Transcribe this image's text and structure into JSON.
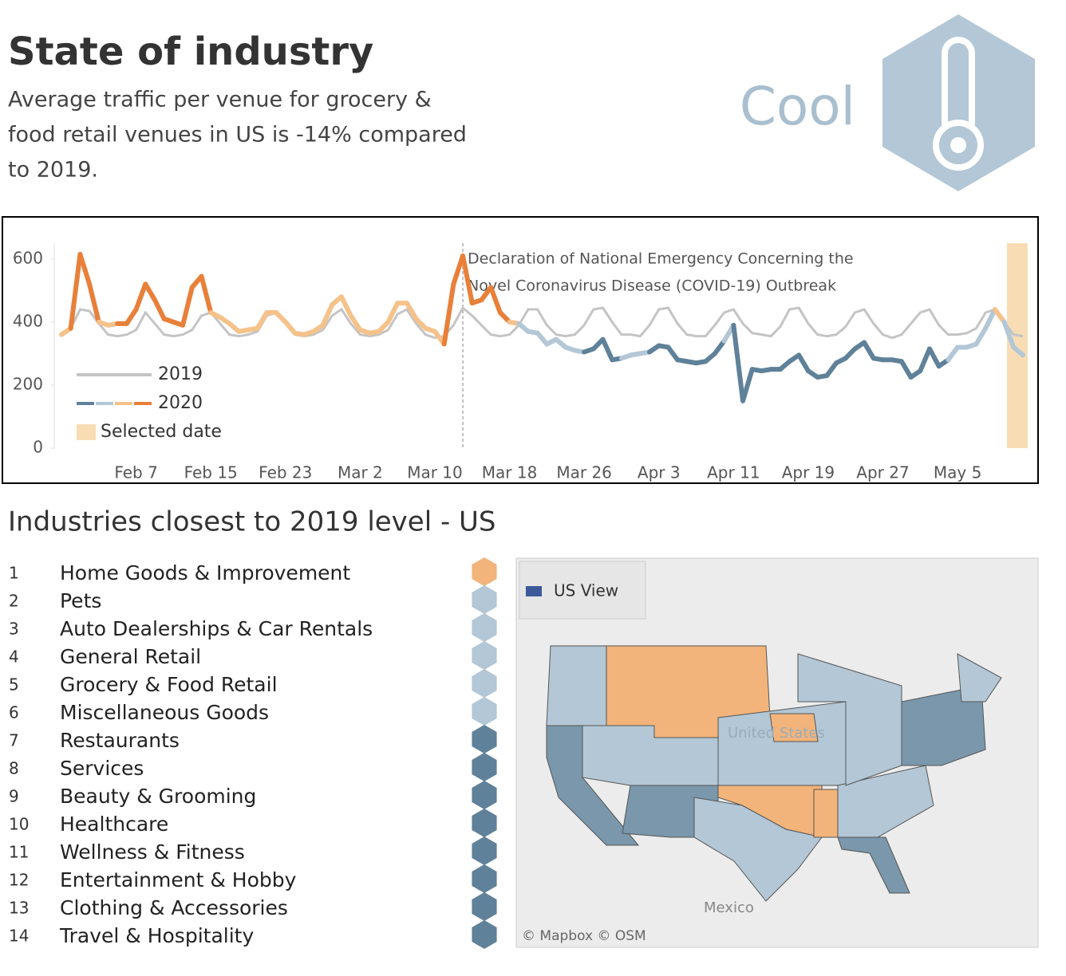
{
  "header": {
    "title": "State of industry",
    "subtitle_lines": [
      "Average traffic per venue for grocery &",
      "food retail venues in US is -14% compared",
      "to 2019."
    ],
    "status": "Cool"
  },
  "chart_data": {
    "type": "line",
    "categories": [
      null,
      null,
      null,
      null,
      null,
      null,
      null,
      null,
      "Feb 7",
      null,
      null,
      null,
      null,
      null,
      null,
      null,
      "Feb 15",
      null,
      null,
      null,
      null,
      null,
      null,
      null,
      "Feb 23",
      null,
      null,
      null,
      null,
      null,
      null,
      null,
      "Mar 2",
      null,
      null,
      null,
      null,
      null,
      null,
      null,
      "Mar 10",
      null,
      null,
      null,
      null,
      null,
      null,
      null,
      "Mar 18",
      null,
      null,
      null,
      null,
      null,
      null,
      null,
      "Mar 26",
      null,
      null,
      null,
      null,
      null,
      null,
      null,
      "Apr 3",
      null,
      null,
      null,
      null,
      null,
      null,
      null,
      "Apr 11",
      null,
      null,
      null,
      null,
      null,
      null,
      null,
      "Apr 19",
      null,
      null,
      null,
      null,
      null,
      null,
      null,
      "Apr 27",
      null,
      null,
      null,
      null,
      null,
      null,
      null,
      "May 5",
      null,
      null,
      null,
      null,
      null,
      null,
      null
    ],
    "series": [
      {
        "name": "2019",
        "color": "#c4c4c4",
        "values": [
          360,
          380,
          440,
          435,
          395,
          360,
          355,
          360,
          375,
          430,
          395,
          360,
          355,
          360,
          375,
          420,
          430,
          395,
          360,
          355,
          360,
          370,
          420,
          430,
          395,
          360,
          355,
          360,
          375,
          420,
          440,
          395,
          360,
          355,
          360,
          375,
          425,
          440,
          395,
          360,
          350,
          355,
          390,
          445,
          420,
          390,
          360,
          355,
          360,
          390,
          440,
          440,
          390,
          360,
          355,
          360,
          390,
          440,
          445,
          400,
          360,
          360,
          355,
          390,
          440,
          445,
          395,
          360,
          355,
          355,
          390,
          430,
          440,
          395,
          365,
          360,
          355,
          385,
          440,
          445,
          395,
          360,
          355,
          360,
          385,
          430,
          440,
          395,
          360,
          350,
          360,
          395,
          430,
          440,
          390,
          360,
          360,
          365,
          380,
          430,
          440,
          400,
          360,
          355
        ]
      },
      {
        "name": "2020",
        "color_scale": [
          "#5f8199",
          "#b3c7d6",
          "#f5c28a",
          "#e8803a"
        ],
        "values": [
          360,
          380,
          615,
          520,
          400,
          390,
          395,
          395,
          440,
          520,
          470,
          410,
          400,
          390,
          510,
          545,
          430,
          415,
          395,
          370,
          375,
          380,
          430,
          430,
          400,
          365,
          360,
          370,
          390,
          455,
          480,
          420,
          375,
          365,
          370,
          400,
          460,
          460,
          410,
          380,
          370,
          330,
          520,
          610,
          460,
          470,
          510,
          430,
          400,
          395,
          370,
          365,
          330,
          345,
          320,
          310,
          305,
          315,
          345,
          280,
          285,
          295,
          300,
          305,
          325,
          320,
          280,
          275,
          270,
          275,
          300,
          340,
          390,
          150,
          250,
          245,
          250,
          250,
          275,
          295,
          245,
          225,
          230,
          270,
          285,
          315,
          335,
          285,
          280,
          280,
          275,
          225,
          245,
          315,
          260,
          280,
          320,
          320,
          330,
          380,
          440,
          400,
          320,
          295
        ]
      }
    ],
    "highlight_label": "Selected date",
    "highlight_color": "#f8dcb4",
    "annotation": "Declaration of National Emergency Concerning the Novel Coronavirus Disease (COVID-19) Outbreak",
    "ylim": [
      0,
      650
    ],
    "yticks": [
      0,
      200,
      400,
      600
    ]
  },
  "ranking": {
    "title": "Industries closest to 2019 level - US",
    "items": [
      {
        "rank": 1,
        "name": "Home Goods & Improvement",
        "color": "#f2b47a"
      },
      {
        "rank": 2,
        "name": "Pets",
        "color": "#b3c7d6"
      },
      {
        "rank": 3,
        "name": "Auto Dealerships & Car Rentals",
        "color": "#b3c7d6"
      },
      {
        "rank": 4,
        "name": "General Retail",
        "color": "#b3c7d6"
      },
      {
        "rank": 5,
        "name": "Grocery & Food Retail",
        "color": "#b3c7d6"
      },
      {
        "rank": 6,
        "name": "Miscellaneous Goods",
        "color": "#b3c7d6"
      },
      {
        "rank": 7,
        "name": "Restaurants",
        "color": "#5f8199"
      },
      {
        "rank": 8,
        "name": "Services",
        "color": "#5f8199"
      },
      {
        "rank": 9,
        "name": "Beauty & Grooming",
        "color": "#5f8199"
      },
      {
        "rank": 10,
        "name": "Healthcare",
        "color": "#5f8199"
      },
      {
        "rank": 11,
        "name": "Wellness & Fitness",
        "color": "#5f8199"
      },
      {
        "rank": 12,
        "name": "Entertainment & Hobby",
        "color": "#5f8199"
      },
      {
        "rank": 13,
        "name": "Clothing & Accessories",
        "color": "#5f8199"
      },
      {
        "rank": 14,
        "name": "Travel & Hospitality",
        "color": "#5f8199"
      }
    ]
  },
  "map": {
    "view_button": "US View",
    "country": "United States",
    "neighbor": "Mexico",
    "credits": "© Mapbox  © OSM"
  }
}
